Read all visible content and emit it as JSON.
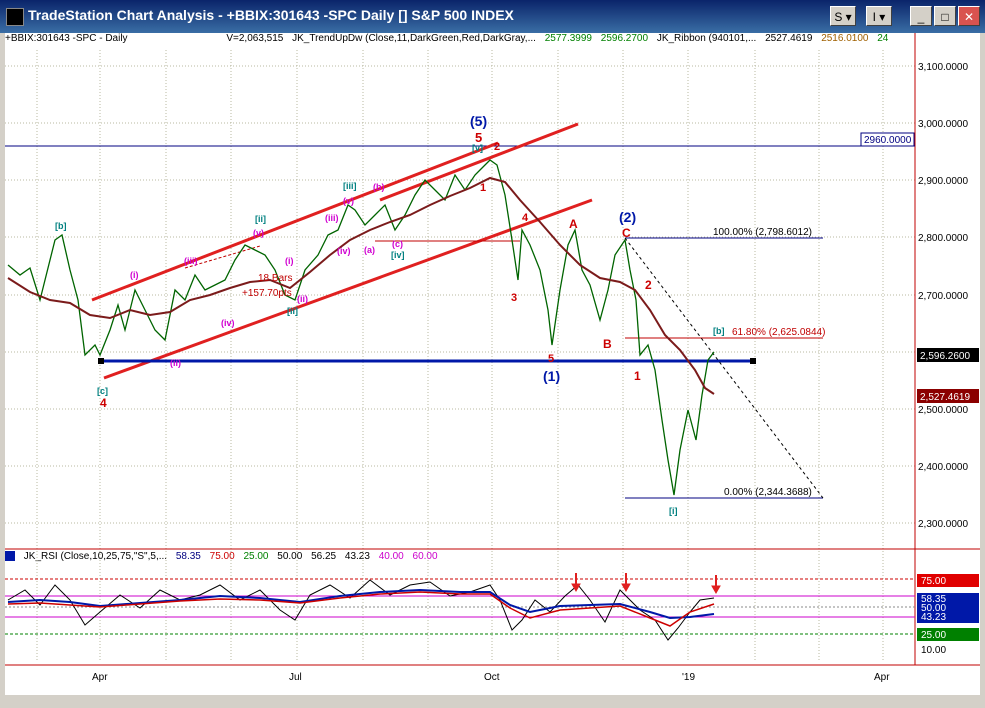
{
  "window": {
    "title": "TradeStation Chart Analysis - +BBIX:301643 -SPC Daily [] S&P 500 INDEX",
    "buttons": {
      "s_menu": "S ▾",
      "i_menu": "I ▾",
      "minimize": "_",
      "maximize": "□",
      "close": "✕"
    }
  },
  "header": {
    "symbol": "+BBIX:301643 -SPC - Daily",
    "volume": "V=2,063,515",
    "indicator1": "JK_TrendUpDw (Close,11,DarkGreen,Red,DarkGray,...",
    "ind1_val1": "2577.3999",
    "ind1_val2": "2596.2700",
    "indicator2": "JK_Ribbon (940101,...",
    "ind2_val1": "2527.4619",
    "ind2_val2": "2516.0100",
    "ind2_val3": "24"
  },
  "price_axis": {
    "ticks": [
      "3,100.0000",
      "3,000.0000",
      "2,900.0000",
      "2,800.0000",
      "2,700.0000",
      "2,500.0000",
      "2,400.0000",
      "2,300.0000"
    ],
    "last_price": "2,596.2600",
    "ma_price": "2,527.4619",
    "hline_label": "2960.0000"
  },
  "fib": {
    "level_100": "100.00% (2,798.6012)",
    "level_618": "61.80% (2,625.0844)",
    "level_0": "0.00% (2,344.3688)"
  },
  "chart_labels": {
    "bars_note": "18 Bars",
    "points_note": "+157.70pts"
  },
  "wave_labels": {
    "big5": "(5)",
    "big1": "(1)",
    "big2": "(2)",
    "red5": "5",
    "red4": "4",
    "red2": "2",
    "red1": "1",
    "red4b": "4",
    "red3": "3",
    "red5b": "5",
    "redA": "A",
    "redB": "B",
    "redC": "C",
    "red2b": "2",
    "red1b": "1",
    "tb": "[b]",
    "tc": "[c]",
    "tii": "[ii]",
    "tiii": "[iii]",
    "tiv": "[iv]",
    "tv": "[v]",
    "ti_low": "[i]",
    "tb_end": "[b]",
    "mi": "(i)",
    "mii": "(ii)",
    "miii": "(iii)",
    "miv": "(iv)",
    "mv": "(v)",
    "ma": "(a)",
    "mb": "(b)",
    "mc": "(c)",
    "m_iii2": "(iii)",
    "m_v2": "(v)",
    "m_iv2": "(iv)",
    "m_ii2": "(ii)",
    "m_i2": "(i)",
    "m_b2": "(b)"
  },
  "rsi": {
    "name": "JK_RSI (Close,10,25,75,\"S\",5,...",
    "vals": [
      "58.35",
      "75.00",
      "25.00",
      "50.00",
      "56.25",
      "43.23",
      "40.00",
      "60.00"
    ],
    "axis": {
      "v75": "75.00",
      "v58": "58.35",
      "v50": "50.00",
      "v43": "43.23",
      "v25": "25.00",
      "v10": "10.00"
    }
  },
  "x_axis": {
    "labels": [
      "Apr",
      "Jul",
      "Oct",
      "'19",
      "Apr"
    ]
  },
  "colors": {
    "price": "#006400",
    "ma": "#7b1b1b",
    "channel": "#e02020",
    "support": "#0018a8",
    "fib": "#000080",
    "teal": "#008080",
    "magenta": "#d000d0",
    "red_label": "#cc0000"
  }
}
